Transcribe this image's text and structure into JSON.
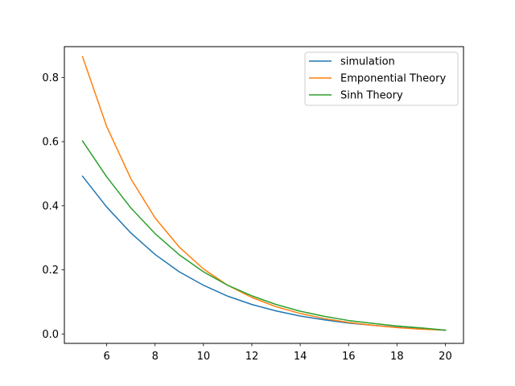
{
  "chart_data": {
    "type": "line",
    "title": "",
    "xlabel": "",
    "ylabel": "",
    "xlim": [
      4.25,
      20.75
    ],
    "ylim": [
      -0.0293,
      0.8962
    ],
    "xticks": [
      6,
      8,
      10,
      12,
      14,
      16,
      18,
      20
    ],
    "yticks": [
      0.0,
      0.2,
      0.4,
      0.6,
      0.8
    ],
    "xtick_labels": [
      "6",
      "8",
      "10",
      "12",
      "14",
      "16",
      "18",
      "20"
    ],
    "ytick_labels": [
      "0.0",
      "0.2",
      "0.4",
      "0.6",
      "0.8"
    ],
    "grid": false,
    "legend_position": "top-right",
    "x": [
      5,
      6,
      7,
      8,
      9,
      10,
      11,
      12,
      13,
      14,
      15,
      16,
      17,
      18,
      19,
      20
    ],
    "series": [
      {
        "name": "simulation",
        "color": "#1f77b4",
        "values": [
          0.492,
          0.396,
          0.315,
          0.248,
          0.194,
          0.152,
          0.118,
          0.092,
          0.072,
          0.056,
          0.044,
          0.034,
          0.027,
          0.021,
          0.016,
          0.012
        ]
      },
      {
        "name": "Emponential Theory",
        "color": "#ff7f0e",
        "values": [
          0.865,
          0.647,
          0.484,
          0.362,
          0.271,
          0.203,
          0.152,
          0.114,
          0.085,
          0.064,
          0.048,
          0.036,
          0.027,
          0.02,
          0.015,
          0.012
        ]
      },
      {
        "name": "Sinh Theory",
        "color": "#2ca02c",
        "values": [
          0.602,
          0.49,
          0.393,
          0.313,
          0.247,
          0.194,
          0.152,
          0.119,
          0.092,
          0.071,
          0.055,
          0.042,
          0.033,
          0.025,
          0.019,
          0.012
        ]
      }
    ]
  }
}
